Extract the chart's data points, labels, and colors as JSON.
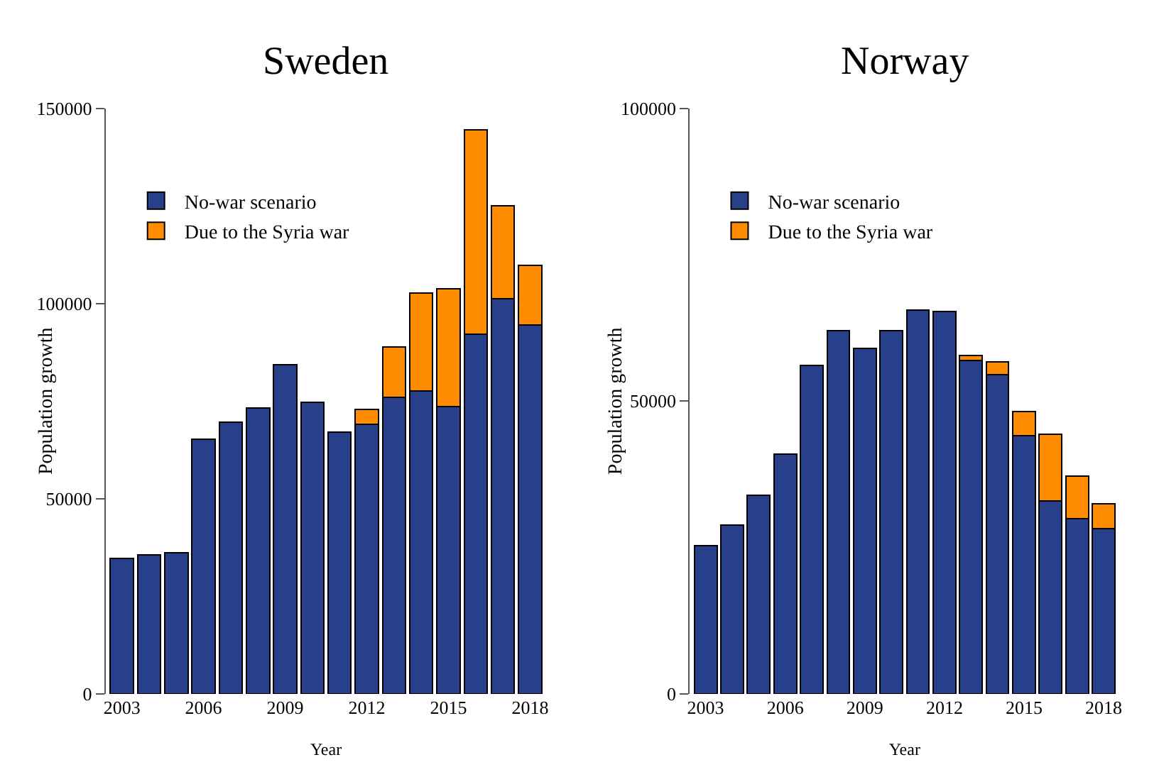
{
  "chart_data": [
    {
      "type": "bar",
      "title": "Sweden",
      "xlabel": "Year",
      "ylabel": "Population growth",
      "stacked": true,
      "grid": false,
      "legend": "top left",
      "x": [
        2003,
        2004,
        2005,
        2006,
        2007,
        2008,
        2009,
        2010,
        2011,
        2012,
        2013,
        2014,
        2015,
        2016,
        2017,
        2018
      ],
      "xlim": [
        2002.4,
        2018.6
      ],
      "xticks": [
        2003,
        2006,
        2009,
        2012,
        2015,
        2018
      ],
      "ylim": [
        0,
        150000
      ],
      "yticks": [
        0,
        50000,
        100000,
        150000
      ],
      "series": [
        {
          "name": "No-war scenario",
          "color": "#283f8a",
          "values": [
            34700,
            35600,
            36200,
            65300,
            69600,
            73300,
            84300,
            74700,
            67000,
            69000,
            76000,
            77600,
            73600,
            92100,
            101300,
            94500
          ]
        },
        {
          "name": "Due to the Syria war",
          "color": "#ff8c00",
          "values": [
            null,
            null,
            null,
            null,
            null,
            null,
            null,
            null,
            null,
            3900,
            12900,
            25100,
            30100,
            52300,
            23800,
            15300
          ]
        }
      ]
    },
    {
      "type": "bar",
      "title": "Norway",
      "xlabel": "Year",
      "ylabel": "Population growth",
      "stacked": true,
      "grid": false,
      "legend": "top left",
      "x": [
        2003,
        2004,
        2005,
        2006,
        2007,
        2008,
        2009,
        2010,
        2011,
        2012,
        2013,
        2014,
        2015,
        2016,
        2017,
        2018
      ],
      "xlim": [
        2002.4,
        2018.6
      ],
      "xticks": [
        2003,
        2006,
        2009,
        2012,
        2015,
        2018
      ],
      "ylim": [
        0,
        100000
      ],
      "yticks": [
        0,
        50000,
        100000
      ],
      "series": [
        {
          "name": "No-war scenario",
          "color": "#283f8a",
          "values": [
            25300,
            28800,
            33900,
            41000,
            56100,
            62000,
            59000,
            62000,
            65500,
            65300,
            56900,
            54500,
            44100,
            32900,
            29900,
            28200
          ]
        },
        {
          "name": "Due to the Syria war",
          "color": "#ff8c00",
          "values": [
            null,
            null,
            null,
            null,
            null,
            null,
            null,
            null,
            null,
            null,
            900,
            2200,
            4100,
            11400,
            7300,
            4300
          ]
        }
      ]
    }
  ]
}
